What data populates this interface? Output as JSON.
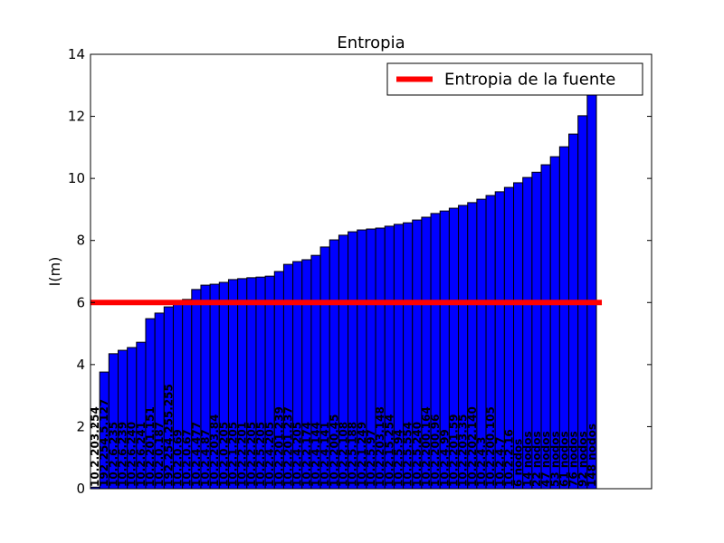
{
  "chart_data": {
    "type": "bar",
    "title": "Entropia",
    "ylabel": "I(m)",
    "categories": [
      "10.2.203.254",
      "192.254.5.127",
      "10.2.6.235",
      "10.2.6.239",
      "10.2.6.240",
      "10.2.6.241",
      "10.2.201.151",
      "10.2.0.187",
      "192.254.255.255",
      "10.2.0.69",
      "10.2.0.67",
      "10.2.4.477",
      "10.2.4.87",
      "10.2.203.84",
      "10.2.0.205",
      "10.2.1.205",
      "10.2.2.201",
      "10.2.2.205",
      "10.2.5.205",
      "10.2.4.205",
      "10.2.201.239",
      "10.2.201.237",
      "10.2.4.205",
      "10.2.2.174",
      "10.2.4.144",
      "10.2.4.141",
      "10.2.200.45",
      "10.2.2.108",
      "10.2.5.188",
      "10.2.1.249",
      "10.2.5.97",
      "10.2.203.148",
      "10.2.15.254",
      "10.2.5.94",
      "10.2.5.554",
      "10.2.5.240",
      "10.2.200.164",
      "10.2.200.96",
      "10.2.4.99",
      "10.2.201.59",
      "10.2.203.35",
      "10.2.202.140",
      "10.2.4.3",
      "10.2.200.105",
      "10.2.4.7",
      "10.2.2.16",
      "6 nodos",
      "14 nodos",
      "22 nodos",
      "47 nodos",
      "53 nodos",
      "61 nodos",
      "76 nodos",
      "92 nodos",
      "148 nodos"
    ],
    "values": [
      0.05,
      3.76,
      4.35,
      4.46,
      4.55,
      4.72,
      5.48,
      5.66,
      5.86,
      5.98,
      6.1,
      6.42,
      6.56,
      6.59,
      6.65,
      6.74,
      6.77,
      6.8,
      6.82,
      6.85,
      7.0,
      7.23,
      7.32,
      7.38,
      7.52,
      7.79,
      8.02,
      8.17,
      8.28,
      8.34,
      8.37,
      8.4,
      8.46,
      8.52,
      8.57,
      8.66,
      8.75,
      8.87,
      8.95,
      9.04,
      9.13,
      9.22,
      9.33,
      9.45,
      9.57,
      9.71,
      9.86,
      10.03,
      10.2,
      10.44,
      10.7,
      11.02,
      11.43,
      12.02,
      12.9
    ],
    "color": "#0000ff",
    "ylim": [
      0,
      14
    ],
    "yticks": [
      0,
      2,
      4,
      6,
      8,
      10,
      12,
      14
    ],
    "hline": {
      "name": "Entropia de la fuente",
      "value": 6,
      "color": "#ff0000"
    },
    "legend": "upper right"
  }
}
